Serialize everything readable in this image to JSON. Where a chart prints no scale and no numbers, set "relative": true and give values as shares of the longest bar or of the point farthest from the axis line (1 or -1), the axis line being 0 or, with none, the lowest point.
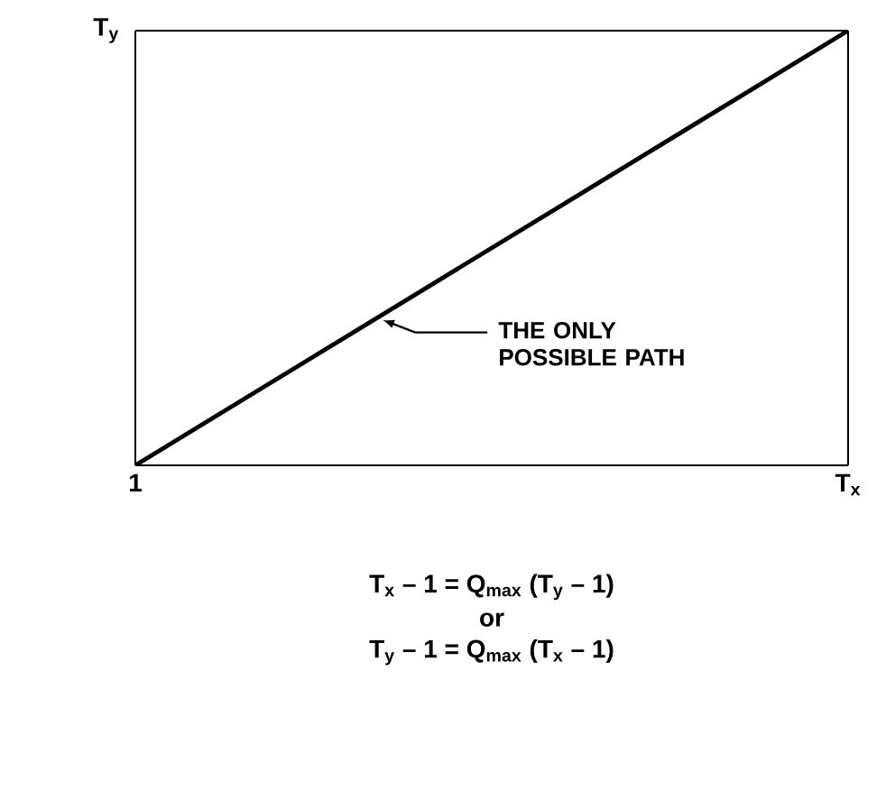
{
  "chart_data": {
    "type": "line",
    "relative": true,
    "categories": [
      "1",
      "T$_{x}$"
    ],
    "ylabel": "T$_{y}$",
    "series": [
      {
        "color": "#000000",
        "values": [
          0,
          1
        ]
      }
    ],
    "annotations": [
      "THE ONLY POSSIBLE PATH",
      "T$_{x}$ – 1  =  Q$_{max}$ (T$_{y}$ – 1)",
      "or",
      "T$_{y}$ – 1  =  Q$_{max}$ (T$_{x}$ – 1)"
    ],
    "marker": "none",
    "line_style": "solid"
  }
}
